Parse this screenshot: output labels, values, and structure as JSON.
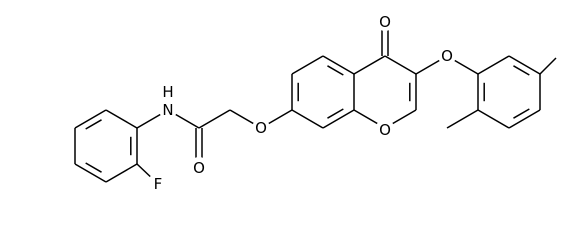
{
  "atoms": [
    "O",
    "O",
    "O",
    "O",
    "O",
    "N",
    "H",
    "F"
  ]
}
